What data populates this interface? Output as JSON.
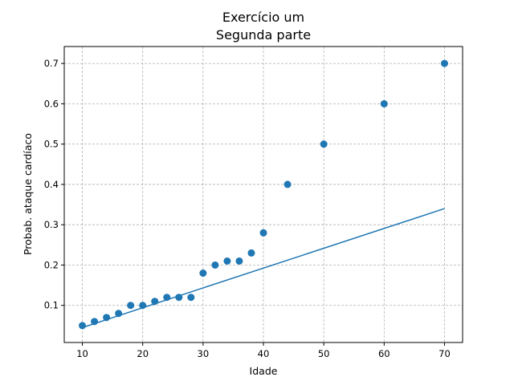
{
  "chart_data": {
    "type": "scatter",
    "title_line1": "Exercício um",
    "title_line2": "Segunda parte",
    "xlabel": "Idade",
    "ylabel": "Probab. ataque cardíaco",
    "xlim": [
      7,
      73
    ],
    "ylim": [
      0.008,
      0.742
    ],
    "x_ticks": [
      10,
      20,
      30,
      40,
      50,
      60,
      70
    ],
    "y_ticks": [
      0.1,
      0.2,
      0.3,
      0.4,
      0.5,
      0.6,
      0.7
    ],
    "x_tick_labels": [
      "10",
      "20",
      "30",
      "40",
      "50",
      "60",
      "70"
    ],
    "y_tick_labels": [
      "0.1",
      "0.2",
      "0.3",
      "0.4",
      "0.5",
      "0.6",
      "0.7"
    ],
    "grid": true,
    "color": "#1f77b4",
    "series": [
      {
        "type": "scatter",
        "x": [
          10,
          12,
          14,
          16,
          18,
          20,
          22,
          24,
          26,
          28,
          30,
          32,
          34,
          36,
          38,
          40,
          44,
          50,
          60,
          70
        ],
        "y": [
          0.05,
          0.06,
          0.07,
          0.08,
          0.1,
          0.1,
          0.11,
          0.12,
          0.12,
          0.12,
          0.18,
          0.2,
          0.21,
          0.21,
          0.23,
          0.28,
          0.4,
          0.5,
          0.6,
          0.7
        ]
      },
      {
        "type": "line",
        "x": [
          10,
          70
        ],
        "y": [
          0.045,
          0.34
        ]
      }
    ]
  }
}
